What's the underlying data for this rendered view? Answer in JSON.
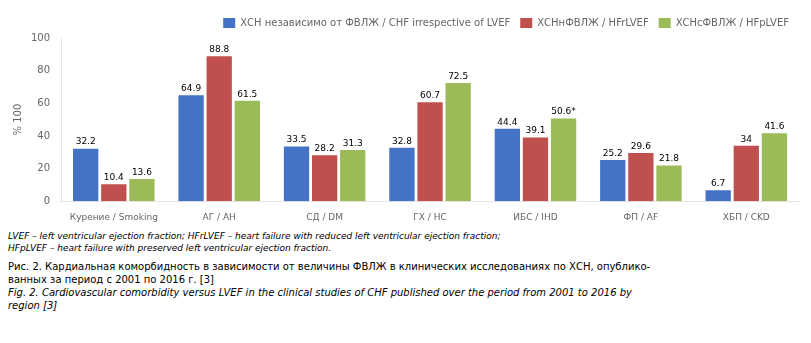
{
  "chart_data": {
    "type": "bar",
    "categories": [
      "Курение / Smoking",
      "АГ / АН",
      "СД / DM",
      "ГХ / HC",
      "ИБС / IHD",
      "ФП / AF",
      "ХБП / CKD"
    ],
    "series": [
      {
        "name": "ХСН независимо от ФВЛЖ / CHF irrespective of LVEF",
        "color": "#4472C4",
        "values": [
          32.2,
          64.9,
          33.5,
          32.8,
          44.4,
          25.2,
          6.7
        ],
        "value_labels": [
          "32.2",
          "64.9",
          "33.5",
          "32.8",
          "44.4",
          "25.2",
          "6.7"
        ]
      },
      {
        "name": "ХСНнФВЛЖ / HFrLVEF",
        "color": "#C0504D",
        "values": [
          10.4,
          88.8,
          28.2,
          60.7,
          39.1,
          29.6,
          34.0
        ],
        "value_labels": [
          "10.4",
          "88.8",
          "28.2",
          "60.7",
          "39.1",
          "29.6",
          "34"
        ]
      },
      {
        "name": "ХСНсФВЛЖ / HFpLVEF",
        "color": "#9BBB59",
        "values": [
          13.6,
          61.5,
          31.3,
          72.5,
          50.6,
          21.8,
          41.6
        ],
        "value_labels": [
          "13.6",
          "61.5",
          "31.3",
          "72.5",
          "50.6*",
          "21.8",
          "41.6"
        ]
      }
    ],
    "ylim": [
      0,
      100
    ],
    "yticks": [
      0,
      20,
      40,
      60,
      80,
      100
    ],
    "ylabel": "% 100",
    "legend": "upper right",
    "grid": false,
    "data_labels": true,
    "footnote": [
      "LVEF – left ventricular ejection fraction; HFrLVEF – heart failure with reduced left ventricular ejection fraction;",
      "HFpLVEF – heart failure with preserved left ventricular ejection fraction."
    ],
    "caption": [
      "Рис. 2. Кардиальная коморбидность в зависимости от величины ФВЛЖ в клинических исследованиях по ХСН, опублико-",
      "ванных за период с 2001 по 2016 г. [3]",
      "Fig. 2. Cardiovascular comorbidity versus LVEF in the clinical studies of CHF published over the period from 2001 to 2016 by",
      "region [3]"
    ]
  }
}
